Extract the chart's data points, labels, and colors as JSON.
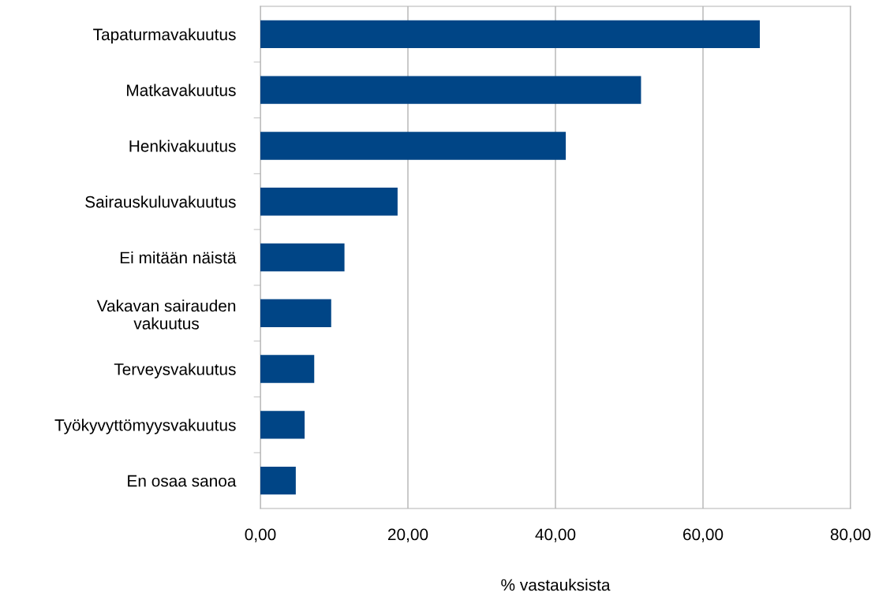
{
  "chart_data": {
    "type": "bar",
    "orientation": "horizontal",
    "categories": [
      "Tapaturmavakuutus",
      "Matkavakuutus",
      "Henkivakuutus",
      "Sairauskuluvakuutus",
      "Ei mitään näistä",
      "Vakavan sairauden\nvakuutus",
      "Terveysvakuutus",
      "Työkyvyttömyysvakuutus",
      "En osaa sanoa"
    ],
    "values": [
      67.7,
      51.6,
      41.4,
      18.6,
      11.4,
      9.6,
      7.3,
      6.0,
      4.8
    ],
    "color": "#004586",
    "xlim": [
      0,
      80
    ],
    "xticks": [
      {
        "value": 0,
        "label": "0,00"
      },
      {
        "value": 20,
        "label": "20,00"
      },
      {
        "value": 40,
        "label": "40,00"
      },
      {
        "value": 60,
        "label": "60,00"
      },
      {
        "value": 80,
        "label": "80,00"
      }
    ],
    "xlabel": "% vastauksista",
    "grid": "x",
    "legend": false
  }
}
